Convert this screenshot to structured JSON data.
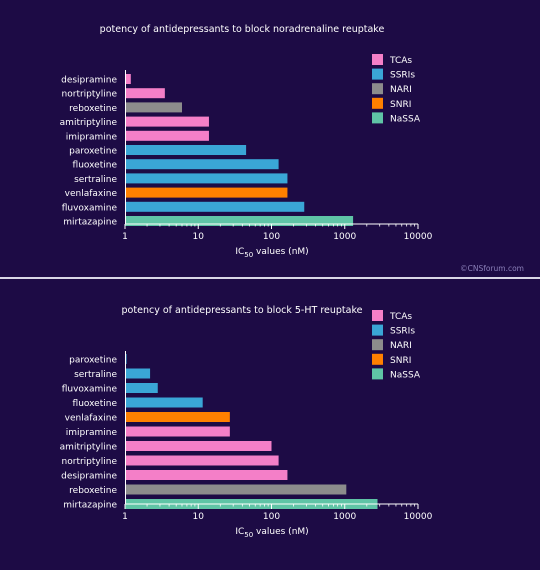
{
  "watermark": "©CNSforum.com",
  "legend": [
    {
      "key": "TCA",
      "label": "TCAs",
      "color": "#f47fc8"
    },
    {
      "key": "SSRI",
      "label": "SSRIs",
      "color": "#3aa6d6"
    },
    {
      "key": "NARI",
      "label": "NARI",
      "color": "#8c8c8c"
    },
    {
      "key": "SNRI",
      "label": "SNRI",
      "color": "#ff8000"
    },
    {
      "key": "NaSSA",
      "label": "NaSSA",
      "color": "#5fc4a6"
    }
  ],
  "chart_data": [
    {
      "type": "bar",
      "orientation": "horizontal",
      "title": "potency of antidepressants to block noradrenaline reuptake",
      "xlabel_main": "IC",
      "xlabel_sub": "50",
      "xlabel_rest": " values (nM)",
      "xscale": "log",
      "xlim": [
        1,
        10000
      ],
      "xticks": [
        "1",
        "10",
        "100",
        "1000",
        "10000"
      ],
      "legend_position": "top-right",
      "categories": [
        "desipramine",
        "nortriptyline",
        "reboxetine",
        "amitriptyline",
        "imipramine",
        "paroxetine",
        "fluoxetine",
        "sertraline",
        "venlafaxine",
        "fluvoxamine",
        "mirtazapine"
      ],
      "values": [
        1.2,
        3.5,
        6,
        14,
        14,
        45,
        125,
        165,
        165,
        280,
        1300
      ],
      "classes": [
        "TCA",
        "TCA",
        "NARI",
        "TCA",
        "TCA",
        "SSRI",
        "SSRI",
        "SSRI",
        "SNRI",
        "SSRI",
        "NaSSA"
      ]
    },
    {
      "type": "bar",
      "orientation": "horizontal",
      "title": "potency of antidepressants to block 5-HT reuptake",
      "xlabel_main": "IC",
      "xlabel_sub": "50",
      "xlabel_rest": " values (nM)",
      "xscale": "log",
      "xlim": [
        1,
        10000
      ],
      "xticks": [
        "1",
        "10",
        "100",
        "1000",
        "10000"
      ],
      "legend_position": "top-right",
      "categories": [
        "paroxetine",
        "sertraline",
        "fluvoxamine",
        "fluoxetine",
        "venlafaxine",
        "imipramine",
        "amitriptyline",
        "nortriptyline",
        "desipramine",
        "reboxetine",
        "mirtazapine"
      ],
      "values": [
        1.05,
        2.2,
        2.8,
        11.5,
        27,
        27,
        100,
        125,
        165,
        1050,
        2800
      ],
      "classes": [
        "SSRI",
        "SSRI",
        "SSRI",
        "SSRI",
        "SNRI",
        "TCA",
        "TCA",
        "TCA",
        "TCA",
        "NARI",
        "NaSSA"
      ]
    }
  ]
}
